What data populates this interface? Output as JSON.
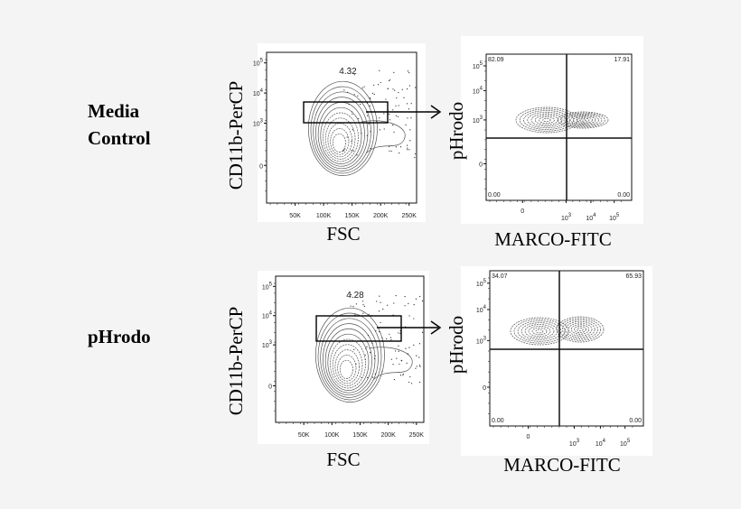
{
  "conditions": [
    "Media Control",
    "pHrodo"
  ],
  "condition_lines": [
    [
      "Media",
      "Control"
    ],
    [
      "pHrodo"
    ]
  ],
  "colors": {
    "background": "#f4f4f4",
    "panel": "#ffffff",
    "ink": "#000000",
    "contour": "#555555"
  },
  "chart_data": [
    {
      "type": "contour",
      "condition": "Media Control",
      "xlabel": "FSC",
      "ylabel": "CD11b-PerCP",
      "xticks": [
        "50K",
        "100K",
        "150K",
        "200K",
        "250K"
      ],
      "yticks": [
        "0",
        "10^3",
        "10^4",
        "10^5"
      ],
      "gate_percent": "4.32",
      "gate": "rectangle"
    },
    {
      "type": "contour",
      "condition": "Media Control",
      "xlabel": "MARCO-FITC",
      "ylabel": "pHrodo",
      "xticks": [
        "0",
        "10^3",
        "10^4",
        "10^5"
      ],
      "yticks": [
        "0",
        "10^3",
        "10^4",
        "10^5"
      ],
      "quadrants": {
        "upper_left": "82.09",
        "upper_right": "17.91",
        "lower_left": "0.00",
        "lower_right": "0.00"
      }
    },
    {
      "type": "contour",
      "condition": "pHrodo",
      "xlabel": "FSC",
      "ylabel": "CD11b-PerCP",
      "xticks": [
        "50K",
        "100K",
        "150K",
        "200K",
        "250K"
      ],
      "yticks": [
        "0",
        "10^3",
        "10^4",
        "10^5"
      ],
      "gate_percent": "4.28",
      "gate": "rectangle"
    },
    {
      "type": "contour",
      "condition": "pHrodo",
      "xlabel": "MARCO-FITC",
      "ylabel": "pHrodo",
      "xticks": [
        "0",
        "10^3",
        "10^4",
        "10^5"
      ],
      "yticks": [
        "0",
        "10^3",
        "10^4",
        "10^5"
      ],
      "quadrants": {
        "upper_left": "34.07",
        "upper_right": "65.93",
        "lower_left": "0.00",
        "lower_right": "0.00"
      }
    }
  ]
}
